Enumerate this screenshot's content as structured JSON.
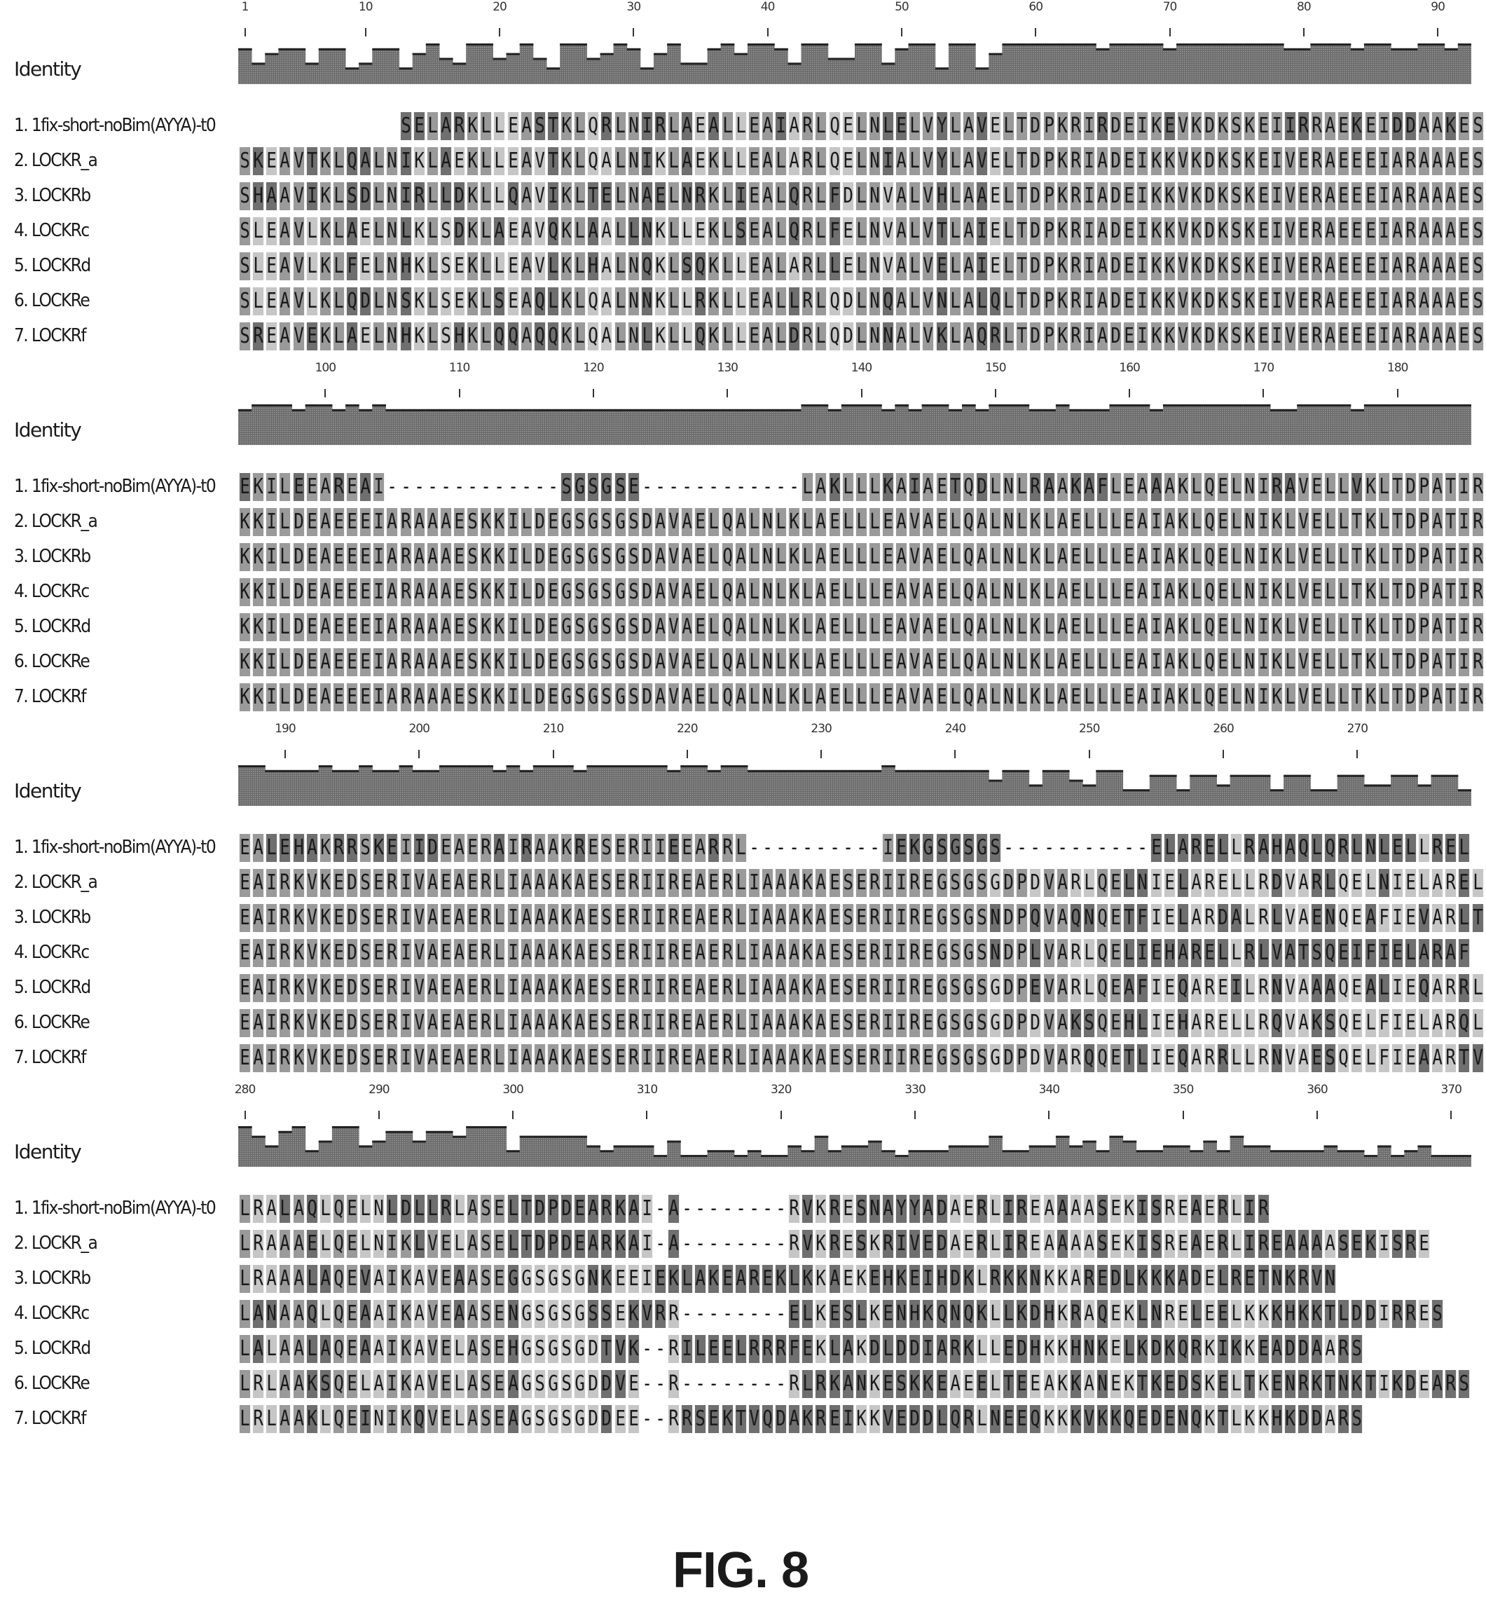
{
  "figure_label": "FIG. 8",
  "identity_label": "Identity",
  "row_labels": [
    "1. 1fix-short-noBim(AYYA)-t0",
    "2. LOCKR_a",
    "3. LOCKRb",
    "4. LOCKRc",
    "5. LOCKRd",
    "6. LOCKRe",
    "7. LOCKRf"
  ],
  "blocks": [
    {
      "start": 1,
      "ticks": [
        "1",
        "10",
        "20",
        "30",
        "40",
        "50",
        "60",
        "70",
        "80",
        "90"
      ],
      "tick_positions": [
        1,
        10,
        20,
        30,
        40,
        50,
        60,
        70,
        80,
        90
      ],
      "sequences": [
        "............SELARKLLEASTKLQRLNIRLAEALLEAIARLQELNLELVYLAVELTDPKRIRDEIKEVKDKSKEIIRRAEKEIDDAAKES",
        "SKEAVTKLQALNIKLAEKLLEAVTKLQALNIKLAEKLLEALARLQELNIALVYLAVELTDPKRIADEIKKVKDKSKEIVERAEEEIARAAAES",
        "SHAAVIKLSDLNIRLLDKLLQAVIKLTELNAELNRKLIEALQRLFDLNVALVHLAAELTDPKRIADEIKKVKDKSKEIVERAEEEIARAAAES",
        "SLEAVLKLAELNLKLSDKLAEAVQKLAALLNKLLEKLSEALQRLFELNVALVTLAIELTDPKRIADEIKKVKDKSKEIVERAEEEIARAAAES",
        "SLEAVLKLFELNHKLSEKLLEAVLKLHALNQKLSQKLLEALARLLELNVALVELAIELTDPKRIADEIKKVKDKSKEIVERAEEEIARAAAES",
        "SLEAVLKLQDLNSKLSEKLSEAQLKLQALNNKLLRKLLEALLRLQDLNQALVNLALQLTDPKRIADEIKKVKDKSKEIVERAEEEIARAAAES",
        "SREAVEKLAELNHKLSHKLQQAQQKLQALNLKLLQKLLEALDRLQDLNNALVKLAQRLTDPKRIADEIKKVKDKSKEIVERAEEEIARAAAES"
      ]
    },
    {
      "start": 94,
      "ticks": [
        "100",
        "110",
        "120",
        "130",
        "140",
        "150",
        "160",
        "170",
        "180"
      ],
      "tick_positions": [
        100,
        110,
        120,
        130,
        140,
        150,
        160,
        170,
        180
      ],
      "sequences": [
        "EKILEEAREAI-------------SGSGSE------------LAKLLLKAIAETQDLNLRAAKAFLEAAAKLQELNIRAVELLVKLTDPATIR",
        "KKILDEAEEEIARAAAESKKILDEGSGSGSDAVAELQALNLKLAELLLEAVAELQALNLKLAELLLEAIAKLQELNIKLVELLTKLTDPATIR",
        "KKILDEAEEEIARAAAESKKILDEGSGSGSDAVAELQALNLKLAELLLEAVAELQALNLKLAELLLEAIAKLQELNIKLVELLTKLTDPATIR",
        "KKILDEAEEEIARAAAESKKILDEGSGSGSDAVAELQALNLKLAELLLEAVAELQALNLKLAELLLEAIAKLQELNIKLVELLTKLTDPATIR",
        "KKILDEAEEEIARAAAESKKILDEGSGSGSDAVAELQALNLKLAELLLEAVAELQALNLKLAELLLEAIAKLQELNIKLVELLTKLTDPATIR",
        "KKILDEAEEEIARAAAESKKILDEGSGSGSDAVAELQALNLKLAELLLEAVAELQALNLKLAELLLEAIAKLQELNIKLVELLTKLTDPATIR",
        "KKILDEAEEEIARAAAESKKILDEGSGSGSDAVAELQALNLKLAELLLEAVAELQALNLKLAELLLEAIAKLQELNIKLVELLTKLTDPATIR"
      ]
    },
    {
      "start": 187,
      "ticks": [
        "190",
        "200",
        "210",
        "220",
        "230",
        "240",
        "250",
        "260",
        "270"
      ],
      "tick_positions": [
        190,
        200,
        210,
        220,
        230,
        240,
        250,
        260,
        270
      ],
      "sequences": [
        "EALEHAKRRSKEIIDEAERAIRAAKRESERIIEEARRL----------IEKGSGSGS-----------ELARELLRAHAQLQRLNLELLREL",
        "EAIRKVKEDSERIVAEAERLIAAAKAESERIIREAERLIAAAKAESERIIREGSGSGDPDVARLQELNIELARELLRDVARLQELNIELAREL",
        "EAIRKVKEDSERIVAEAERLIAAAKAESERIIREAERLIAAAKAESERIIREGSGSNDPQVAQNQETFIELARDALRLVAENQEAFIEVARLT",
        "EAIRKVKEDSERIVAEAERLIAAAKAESERIIREAERLIAAAKAESERIIREGSGSNDPLVARLQELIEHARELLRLVATSQEIFIELARAF",
        "EAIRKVKEDSERIVAEAERLIAAAKAESERIIREAERLIAAAKAESERIIREGSGSGDPEVARLQEAFIEQAREILRNVAAAQEALIEQARRL",
        "EAIRKVKEDSERIVAEAERLIAAAKAESERIIREAERLIAAAKAESERIIREGSGSGDPDVAKSQEHLIEHARELLRQVAKSQELFIELARQL",
        "EAIRKVKEDSERIVAEAERLIAAAKAESERIIREAERLIAAAKAESERIIREGSGSGDPDVARQQETLIEQARRLLRNVAESQELFIEAARTV"
      ]
    },
    {
      "start": 280,
      "ticks": [
        "280",
        "290",
        "300",
        "310",
        "320",
        "330",
        "340",
        "350",
        "360",
        "370"
      ],
      "tick_positions": [
        280,
        290,
        300,
        310,
        320,
        330,
        340,
        350,
        360,
        370
      ],
      "sequences": [
        "LRALAQLQELNLDLLRLASELTDPDEARKAI-A--------RVKRESNAYYADAERLIREAAAASEKISREAERLIR",
        "LRAAAELQELNIKLVELASELTDPDEARKAI-A--------RVKRESKRIVEDAERLIREAAAASEKISREAERLIREAAAASEKISRE",
        "LRAAALAQEVAIKAVEAASEGGSGSGNKEEIEKLAKEAREKLKKAEKEHKEIHDKLRKKNKKAREDLKKKADELRETNKRVN",
        "LANAAQLQEAAIKAVEAASENGSGSGSSEKVRR--------ELKESLKENHKQNQKLLKDHKRAQEKLNRELEELKKKHKKTLDDIRRES",
        "LALAALAQEAAIKAVELASEHGSGSGDTVK--RILEELRRRFEKLAKDLDDIARKLLEDHKKHNKELKDKQRKIKKEADDAARS",
        "LRLAAKSQELAIKAVELASEAGSGSGDDVE--R--------RLRKANKESKKEAEELTEEAKKANEKTKEDSKELTKENRKTNKTIKDEARS",
        "LRLAAKLQEINIKQVELASEAGSGSGDDEE--RRSEKTVQDAKREIKKVEDDLQRLNEEQKKKVKKQEDENQKTLKKHKDDARS"
      ]
    }
  ]
}
